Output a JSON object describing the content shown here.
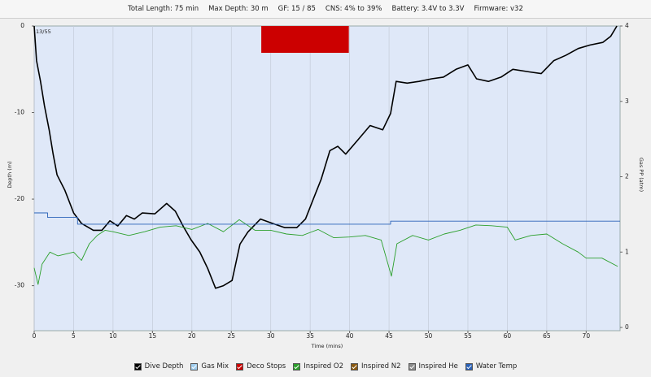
{
  "header": {
    "items": [
      "Total Length: 75 min",
      "Max Depth: 30 m",
      "GF: 15 / 85",
      "CNS: 4% to 39%",
      "Battery: 3.4V to 3.3V",
      "Firmware: v32"
    ]
  },
  "chart_data": {
    "type": "line",
    "corner_label": "13/55",
    "x_label": "Time (mins)",
    "y_label": "Depth (m)",
    "y2_label": "Gas PP (atm)",
    "xlim": [
      0,
      74.3
    ],
    "xticks": [
      0,
      5,
      10,
      15,
      20,
      25,
      30,
      35,
      40,
      45,
      50,
      55,
      60,
      65,
      70
    ],
    "ylim": [
      0,
      -35.2
    ],
    "yticks": [
      0,
      -10,
      -20,
      -30
    ],
    "y2lim": [
      0,
      4
    ],
    "y2ticks": [
      0,
      1,
      2,
      3,
      4
    ],
    "grid": true,
    "series": [
      {
        "name": "Dive Depth",
        "color": "#000000",
        "x": [
          0,
          0.3,
          0.8,
          1.3,
          1.9,
          2.4,
          2.9,
          3.9,
          5,
          6,
          7.5,
          8.6,
          9.6,
          10.6,
          11.7,
          12.7,
          13.7,
          15.3,
          16.8,
          17.9,
          19,
          19.9,
          21,
          22,
          23,
          24,
          25.1,
          26.1,
          27.1,
          28.7,
          30.2,
          31.8,
          33.3,
          34.4,
          35.4,
          36.4,
          37.5,
          38.5,
          39.5,
          41.1,
          42.6,
          44.2,
          45.2,
          45.9,
          47.3,
          48.8,
          50.4,
          51.9,
          53.5,
          55,
          56.1,
          57.6,
          59.2,
          60.7,
          62.8,
          64.3,
          65.9,
          67.4,
          69,
          70.5,
          72.1,
          73.1,
          73.9
        ],
        "values": [
          0,
          -4,
          -6.4,
          -9.2,
          -12,
          -14.8,
          -17.2,
          -19,
          -21.6,
          -22.8,
          -23.6,
          -23.6,
          -22.5,
          -23.1,
          -21.9,
          -22.3,
          -21.6,
          -21.7,
          -20.5,
          -21.4,
          -23.3,
          -24.7,
          -26.1,
          -28,
          -30.3,
          -30,
          -29.4,
          -25.2,
          -23.8,
          -22.3,
          -22.8,
          -23.3,
          -23.3,
          -22.3,
          -20,
          -17.7,
          -14.4,
          -13.9,
          -14.8,
          -13.1,
          -11.5,
          -12,
          -10.1,
          -6.4,
          -6.6,
          -6.4,
          -6.1,
          -5.9,
          -5,
          -4.5,
          -6.1,
          -6.4,
          -5.9,
          -5,
          -5.3,
          -5.5,
          -4,
          -3.4,
          -2.6,
          -2.2,
          -1.9,
          -1.2,
          0
        ]
      },
      {
        "name": "Gas Mix",
        "color": "#9fcdee"
      },
      {
        "name": "Deco Stops",
        "color": "#cc0000",
        "start": 28.8,
        "end": 39.9,
        "depth": -3.1
      },
      {
        "name": "Inspired O2",
        "color": "#2ca02c",
        "axis": "y2",
        "x": [
          0,
          0.5,
          1,
          2,
          3,
          5,
          6,
          7,
          8,
          9,
          10,
          12,
          14,
          16,
          18,
          20,
          22,
          24,
          26,
          28,
          30,
          32,
          34,
          36,
          38,
          40,
          42,
          44,
          45.3,
          46,
          48,
          50,
          52,
          54,
          56,
          58,
          60,
          61,
          63,
          65,
          67,
          69,
          70,
          72,
          74
        ],
        "values": [
          0.79,
          0.57,
          0.84,
          1.0,
          0.95,
          1.0,
          0.89,
          1.11,
          1.22,
          1.29,
          1.27,
          1.22,
          1.27,
          1.33,
          1.35,
          1.3,
          1.38,
          1.27,
          1.43,
          1.29,
          1.29,
          1.24,
          1.22,
          1.3,
          1.19,
          1.2,
          1.22,
          1.16,
          0.68,
          1.11,
          1.22,
          1.16,
          1.24,
          1.29,
          1.36,
          1.35,
          1.33,
          1.16,
          1.22,
          1.24,
          1.11,
          1.0,
          0.92,
          0.92,
          0.81
        ]
      },
      {
        "name": "Inspired N2",
        "color": "#8b5a10"
      },
      {
        "name": "Inspired He",
        "color": "#8c8c8c"
      },
      {
        "name": "Water Temp",
        "color": "#2a62b8",
        "axis": "y2",
        "x": [
          0,
          1.7,
          1.7,
          5.5,
          5.5,
          45.2,
          45.2,
          74.3
        ],
        "values": [
          1.52,
          1.52,
          1.46,
          1.46,
          1.37,
          1.37,
          1.41,
          1.41
        ]
      }
    ]
  }
}
